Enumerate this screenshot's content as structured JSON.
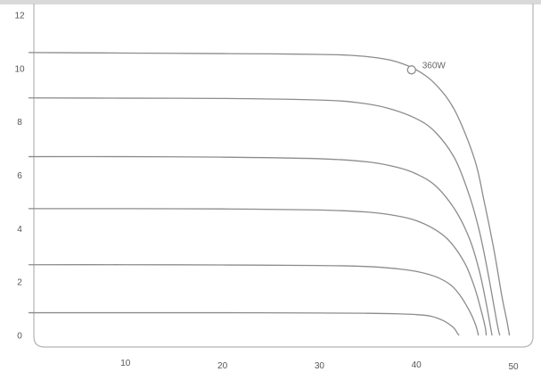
{
  "chart_data": {
    "type": "line",
    "title": "",
    "xlabel": "",
    "ylabel": "",
    "xlim": [
      0,
      50
    ],
    "ylim": [
      0,
      12
    ],
    "x_ticks": [
      10,
      20,
      30,
      40,
      50
    ],
    "y_ticks": [
      0,
      2,
      4,
      6,
      8,
      10,
      12
    ],
    "grid": false,
    "legend": "none",
    "colors": {
      "curve": "#8c8c8c",
      "frame": "#b3b3b3",
      "top_band": "#d9d9d9",
      "tick_text": "#555555",
      "annotation_text": "#666666"
    },
    "series": [
      {
        "points": [
          [
            0,
            10.6
          ],
          [
            5,
            10.59
          ],
          [
            10,
            10.58
          ],
          [
            15,
            10.57
          ],
          [
            20,
            10.56
          ],
          [
            25,
            10.55
          ],
          [
            30,
            10.53
          ],
          [
            33,
            10.5
          ],
          [
            36,
            10.4
          ],
          [
            38,
            10.25
          ],
          [
            40,
            9.95
          ],
          [
            42,
            9.4
          ],
          [
            44,
            8.4
          ],
          [
            46,
            6.6
          ],
          [
            47,
            5.0
          ],
          [
            48,
            3.2
          ],
          [
            48.8,
            1.5
          ],
          [
            49.3,
            0.6
          ],
          [
            49.6,
            0
          ]
        ]
      },
      {
        "points": [
          [
            0,
            8.9
          ],
          [
            10,
            8.89
          ],
          [
            20,
            8.88
          ],
          [
            30,
            8.82
          ],
          [
            34,
            8.72
          ],
          [
            37,
            8.52
          ],
          [
            40,
            8.12
          ],
          [
            42,
            7.6
          ],
          [
            44,
            6.6
          ],
          [
            45.5,
            5.2
          ],
          [
            46.5,
            3.9
          ],
          [
            47.3,
            2.5
          ],
          [
            48,
            1.1
          ],
          [
            48.4,
            0.3
          ],
          [
            48.6,
            0
          ]
        ]
      },
      {
        "points": [
          [
            0,
            6.7
          ],
          [
            10,
            6.7
          ],
          [
            20,
            6.68
          ],
          [
            30,
            6.62
          ],
          [
            35,
            6.5
          ],
          [
            38,
            6.3
          ],
          [
            40,
            6.05
          ],
          [
            42,
            5.6
          ],
          [
            44,
            4.7
          ],
          [
            45.5,
            3.6
          ],
          [
            46.5,
            2.4
          ],
          [
            47.2,
            1.2
          ],
          [
            47.6,
            0.4
          ],
          [
            47.8,
            0
          ]
        ]
      },
      {
        "points": [
          [
            0,
            4.75
          ],
          [
            10,
            4.75
          ],
          [
            20,
            4.74
          ],
          [
            30,
            4.7
          ],
          [
            35,
            4.62
          ],
          [
            38,
            4.48
          ],
          [
            40,
            4.3
          ],
          [
            42,
            3.95
          ],
          [
            43.5,
            3.5
          ],
          [
            45,
            2.7
          ],
          [
            46,
            1.8
          ],
          [
            46.7,
            0.9
          ],
          [
            47.1,
            0.3
          ],
          [
            47.2,
            0
          ]
        ]
      },
      {
        "points": [
          [
            0,
            2.65
          ],
          [
            10,
            2.65
          ],
          [
            20,
            2.64
          ],
          [
            30,
            2.62
          ],
          [
            35,
            2.58
          ],
          [
            38,
            2.5
          ],
          [
            40,
            2.4
          ],
          [
            42,
            2.2
          ],
          [
            43.5,
            1.9
          ],
          [
            44.5,
            1.5
          ],
          [
            45.5,
            0.9
          ],
          [
            46.1,
            0.4
          ],
          [
            46.4,
            0
          ]
        ]
      },
      {
        "points": [
          [
            0,
            0.85
          ],
          [
            10,
            0.85
          ],
          [
            20,
            0.85
          ],
          [
            30,
            0.84
          ],
          [
            35,
            0.83
          ],
          [
            38,
            0.81
          ],
          [
            40,
            0.78
          ],
          [
            41.5,
            0.72
          ],
          [
            42.8,
            0.55
          ],
          [
            43.8,
            0.3
          ],
          [
            44.2,
            0.1
          ],
          [
            44.4,
            0
          ]
        ]
      }
    ],
    "annotations": [
      {
        "text": "360W",
        "x": 39.5,
        "y": 9.95
      }
    ]
  }
}
